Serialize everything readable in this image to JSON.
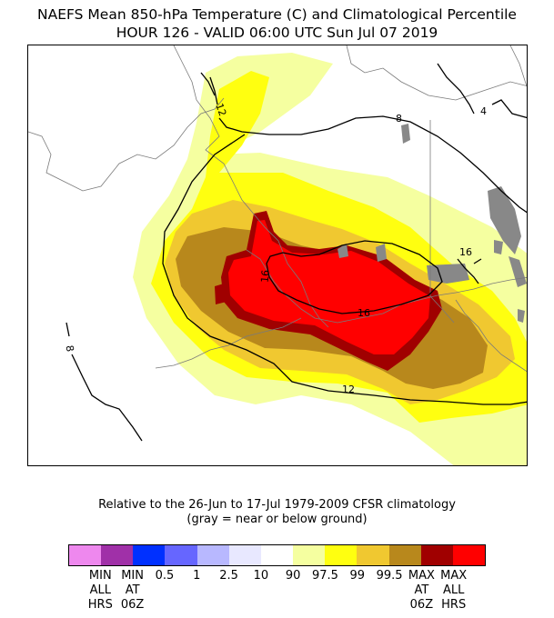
{
  "title": {
    "line1": "NAEFS Mean 850-hPa Temperature (C) and Climatological Percentile",
    "line2": "HOUR 126 - VALID 06:00 UTC Sun Jul 07 2019"
  },
  "caption": {
    "line1": "Relative to the 26-Jun to 17-Jul 1979-2009 CFSR climatology",
    "line2": "(gray = near or below ground)"
  },
  "contour_labels": [
    "8",
    "12",
    "16",
    "16",
    "16",
    "12",
    "8",
    "4"
  ],
  "colorbar": {
    "colors": [
      "#ee88ee",
      "#a030a8",
      "#0030ff",
      "#6666ff",
      "#b8b8ff",
      "#e8e8ff",
      "#ffffff",
      "#f5ffa0",
      "#ffff10",
      "#f0c830",
      "#b8881c",
      "#a00000",
      "#ff0000"
    ],
    "labels": [
      "MIN\nALL\nHRS",
      "MIN\nAT\n06Z",
      "0.5",
      "1",
      "2.5",
      "10",
      "90",
      "97.5",
      "99",
      "99.5",
      "MAX\nAT\n06Z",
      "MAX\nALL\nHRS"
    ]
  },
  "legend_colors": {
    "gray": "#888888",
    "light_yellow": "#f5ffa0",
    "yellow": "#ffff10",
    "gold": "#f0c830",
    "dark_gold": "#b8881c",
    "dark_red": "#a00000",
    "red": "#ff0000"
  }
}
